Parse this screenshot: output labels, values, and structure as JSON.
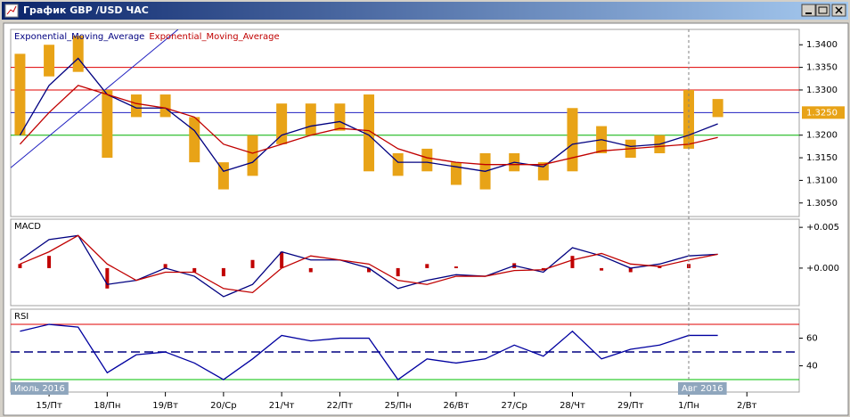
{
  "window": {
    "title": "График GBP /USD ЧАС"
  },
  "chart_data": [
    {
      "type": "range-bar",
      "x": [
        -0.5,
        0,
        0.5,
        1,
        1.5,
        2,
        2.5,
        3,
        3.5,
        4,
        4.5,
        5,
        5.5,
        6,
        6.5,
        7,
        7.5,
        8,
        8.5,
        9,
        9.5,
        10,
        10.5,
        11,
        11.5
      ],
      "xlim": [
        -0.66,
        12.9
      ],
      "high": [
        1.338,
        1.34,
        1.342,
        1.33,
        1.329,
        1.329,
        1.324,
        1.314,
        1.32,
        1.327,
        1.327,
        1.327,
        1.329,
        1.316,
        1.317,
        1.314,
        1.316,
        1.316,
        1.314,
        1.326,
        1.322,
        1.319,
        1.32,
        1.33,
        1.328
      ],
      "low": [
        1.32,
        1.333,
        1.334,
        1.315,
        1.324,
        1.324,
        1.314,
        1.308,
        1.311,
        1.318,
        1.32,
        1.321,
        1.312,
        1.311,
        1.312,
        1.309,
        1.308,
        1.312,
        1.31,
        1.312,
        1.316,
        1.315,
        1.316,
        1.317,
        1.324
      ],
      "bar_color": "#e8a317",
      "series": [
        {
          "name": "Exponential_Moving_Average",
          "color": "#000080",
          "values": [
            1.32,
            1.331,
            1.337,
            1.329,
            1.326,
            1.326,
            1.321,
            1.312,
            1.314,
            1.32,
            1.322,
            1.323,
            1.32,
            1.314,
            1.314,
            1.313,
            1.312,
            1.314,
            1.313,
            1.318,
            1.319,
            1.3175,
            1.318,
            1.32,
            1.3225
          ]
        },
        {
          "name": "Exponential_Moving_Average",
          "color": "#c00000",
          "values": [
            1.318,
            1.325,
            1.331,
            1.329,
            1.327,
            1.326,
            1.324,
            1.318,
            1.316,
            1.318,
            1.32,
            1.3215,
            1.321,
            1.317,
            1.315,
            1.314,
            1.3135,
            1.3135,
            1.3135,
            1.315,
            1.3165,
            1.317,
            1.3175,
            1.318,
            1.3195
          ]
        }
      ],
      "ylim": [
        1.302,
        1.3434
      ],
      "yticks": [
        {
          "value": 1.34,
          "label": "1.3400"
        },
        {
          "value": 1.335,
          "label": "1.3350"
        },
        {
          "value": 1.33,
          "label": "1.3300"
        },
        {
          "value": 1.32,
          "label": "1.3200"
        },
        {
          "value": 1.315,
          "label": "1.3150"
        },
        {
          "value": 1.31,
          "label": "1.3100"
        },
        {
          "value": 1.305,
          "label": "1.3050"
        }
      ],
      "levels": [
        {
          "value": 1.335,
          "color": "#e00000"
        },
        {
          "value": 1.33,
          "color": "#e00000"
        },
        {
          "value": 1.325,
          "color": "#2020c0"
        },
        {
          "value": 1.32,
          "color": "#00b000"
        }
      ],
      "trendline": {
        "x": [
          -0.66,
          2.22
        ],
        "y": [
          1.3128,
          1.3434
        ],
        "color": "#2020c0"
      },
      "price_marker": {
        "value": 1.325,
        "label": "1.3250",
        "color": "#e8a317"
      }
    },
    {
      "type": "macd",
      "title": "MACD",
      "x": [
        -0.5,
        0,
        0.5,
        1,
        1.5,
        2,
        2.5,
        3,
        3.5,
        4,
        4.5,
        5,
        5.5,
        6,
        6.5,
        7,
        7.5,
        8,
        8.5,
        9,
        9.5,
        10,
        10.5,
        11,
        11.5
      ],
      "xlim": [
        -0.66,
        12.9
      ],
      "series": [
        {
          "color": "#000080",
          "values": [
            0.001,
            0.0035,
            0.004,
            -0.002,
            -0.0015,
            0,
            -0.001,
            -0.0035,
            -0.002,
            0.002,
            0.001,
            0.001,
            0,
            -0.0025,
            -0.0015,
            -0.0008,
            -0.001,
            0.0003,
            -0.0005,
            0.0025,
            0.0015,
            0,
            0.0005,
            0.0015,
            0.0017
          ]
        },
        {
          "color": "#c00000",
          "values": [
            0.0005,
            0.002,
            0.004,
            0.0005,
            -0.0015,
            -0.0005,
            -0.0005,
            -0.0025,
            -0.003,
            0,
            0.0015,
            0.001,
            0.0005,
            -0.0015,
            -0.002,
            -0.001,
            -0.001,
            -0.0003,
            -0.0002,
            0.001,
            0.0018,
            0.0005,
            0.0002,
            0.001,
            0.0017
          ]
        }
      ],
      "histogram": {
        "color": "#c00000",
        "values": [
          0.0005,
          0.0015,
          0,
          -0.0025,
          0,
          0.0005,
          -0.0005,
          -0.001,
          0.001,
          0.002,
          -0.0005,
          0,
          -0.0005,
          -0.001,
          0.0005,
          0.0002,
          0,
          0.0006,
          -0.0003,
          0.0015,
          -0.0003,
          -0.0005,
          0.0003,
          0.0005,
          0
        ]
      },
      "ylim": [
        -0.0046,
        0.006
      ],
      "yticks": [
        {
          "value": 0.005,
          "label": "+0.005"
        },
        {
          "value": 0,
          "label": "+0.000"
        }
      ]
    },
    {
      "type": "line",
      "title": "RSI",
      "x": [
        -0.5,
        0,
        0.5,
        1,
        1.5,
        2,
        2.5,
        3,
        3.5,
        4,
        4.5,
        5,
        5.5,
        6,
        6.5,
        7,
        7.5,
        8,
        8.5,
        9,
        9.5,
        10,
        10.5,
        11,
        11.5
      ],
      "xlim": [
        -0.66,
        12.9
      ],
      "series": [
        {
          "color": "#0000a0",
          "values": [
            65,
            70,
            68,
            35,
            48,
            50,
            42,
            30,
            45,
            62,
            58,
            60,
            60,
            30,
            45,
            42,
            45,
            55,
            47,
            65,
            45,
            52,
            55,
            62,
            62
          ]
        }
      ],
      "ylim": [
        21,
        81
      ],
      "yticks": [
        60,
        40
      ],
      "levels": [
        {
          "value": 70,
          "color": "#e00000"
        },
        {
          "value": 50,
          "color": "#000080",
          "dash": true
        },
        {
          "value": 30,
          "color": "#00c000"
        }
      ],
      "xticks": [
        {
          "value": 0,
          "label": "15/Пт"
        },
        {
          "value": 1,
          "label": "18/Пн"
        },
        {
          "value": 2,
          "label": "19/Вт"
        },
        {
          "value": 3,
          "label": "20/Ср"
        },
        {
          "value": 4,
          "label": "21/Чт"
        },
        {
          "value": 5,
          "label": "22/Пт"
        },
        {
          "value": 6,
          "label": "25/Пн"
        },
        {
          "value": 7,
          "label": "26/Вт"
        },
        {
          "value": 8,
          "label": "27/Ср"
        },
        {
          "value": 9,
          "label": "28/Чт"
        },
        {
          "value": 10,
          "label": "29/Пт"
        },
        {
          "value": 11,
          "label": "1/Пн"
        },
        {
          "value": 12,
          "label": "2/Вт"
        }
      ],
      "separator_x": 11,
      "period_labels": [
        "Июль 2016",
        "Авг 2016"
      ]
    }
  ]
}
